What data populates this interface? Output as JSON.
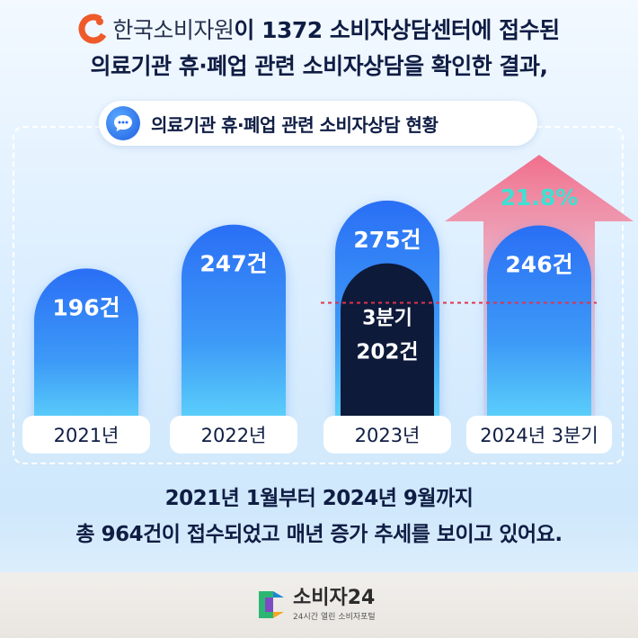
{
  "header": {
    "org_name": "한국소비자원",
    "line1_rest": "이 1372 소비자상담센터에 접수된",
    "line2": "의료기관 휴·폐업 관련 소비자상담을 확인한 결과,"
  },
  "subtitle": "의료기관 휴·폐업 관련 소비자상담 현황",
  "colors": {
    "bar_top": "#2a6ff5",
    "bar_bottom": "#5ed8fb",
    "inner_bar": "#0e1a3a",
    "arrow": "#f08aa0",
    "growth_text": "#3fe0d2",
    "dashed_line": "#e2334d",
    "underline": "#39d4f2"
  },
  "chart_data": {
    "type": "bar",
    "title": "의료기관 휴·폐업 관련 소비자상담 현황",
    "categories": [
      "2021년",
      "2022년",
      "2023년",
      "2024년 3분기"
    ],
    "values": [
      196,
      247,
      275,
      246
    ],
    "value_labels": [
      "196건",
      "247건",
      "275건",
      "246건"
    ],
    "overlay": {
      "category": "2023년",
      "value": 202,
      "label_line1": "3분기",
      "label_line2": "202건"
    },
    "growth": {
      "label": "21.8%",
      "from": "2023년 3분기 202건",
      "to": "2024년 3분기 246건"
    },
    "unit": "건"
  },
  "footer": {
    "line1": "2021년 1월부터 2024년 9월까지",
    "line2_highlight": "총 964건이 접수되었고 매년 증가 추세",
    "line2_rest": "를 보이고 있어요."
  },
  "brand": {
    "name": "소비자24",
    "tagline": "24시간 열린 소비자포털"
  }
}
